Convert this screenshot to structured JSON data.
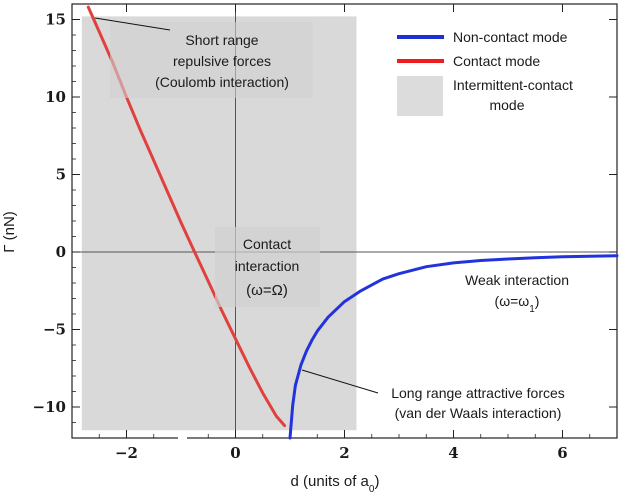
{
  "chart_data": {
    "type": "line",
    "xlabel": "d (units of a",
    "xlabel_sub": "0",
    "xlabel_end": ")",
    "ylabel": "Γ (nN)",
    "xlim": [
      -3.0,
      7.0
    ],
    "ylim": [
      -12.0,
      16.0
    ],
    "xticks": [
      -2,
      0,
      2,
      4,
      6
    ],
    "xtick_labels": [
      "−2",
      "0",
      "2",
      "4",
      "6"
    ],
    "yticks": [
      -10,
      -5,
      0,
      5,
      10,
      15
    ],
    "ytick_labels": [
      "−10",
      "−5",
      "0",
      "5",
      "10",
      "15"
    ],
    "grid": false,
    "legend_position": "top-right",
    "legend": [
      {
        "label": "Non-contact mode",
        "color": "#1f2fd6",
        "kind": "line"
      },
      {
        "label": "Contact mode",
        "color": "#ee1c1c",
        "kind": "line"
      },
      {
        "label": "Intermittent-contact",
        "label2": "mode",
        "color": "#dcdcdc",
        "kind": "patch"
      }
    ],
    "shaded_region": {
      "x": [
        -2.82,
        2.22
      ],
      "y": [
        -11.5,
        15.2
      ],
      "color": "#d6d6d6"
    },
    "series": [
      {
        "key": "contact",
        "color": "#e0413f",
        "x": [
          -2.7,
          -2.5,
          -2.25,
          -2.0,
          -1.75,
          -1.5,
          -1.25,
          -1.0,
          -0.75,
          -0.5,
          -0.25,
          0.0,
          0.25,
          0.5,
          0.75,
          0.9
        ],
        "y": [
          15.8,
          14.2,
          12.2,
          10.0,
          7.9,
          5.9,
          3.9,
          1.9,
          0.0,
          -1.9,
          -3.8,
          -5.6,
          -7.4,
          -9.1,
          -10.6,
          -11.2
        ]
      },
      {
        "key": "non-contact",
        "color": "#2233dd",
        "x": [
          1.0,
          1.05,
          1.1,
          1.2,
          1.3,
          1.4,
          1.5,
          1.7,
          2.0,
          2.3,
          2.7,
          3.0,
          3.5,
          4.0,
          4.5,
          5.0,
          5.5,
          6.0,
          6.5,
          7.0
        ],
        "y": [
          -12.0,
          -9.9,
          -8.6,
          -7.3,
          -6.4,
          -5.7,
          -5.1,
          -4.2,
          -3.2,
          -2.5,
          -1.75,
          -1.4,
          -0.95,
          -0.7,
          -0.55,
          -0.45,
          -0.37,
          -0.31,
          -0.27,
          -0.24
        ]
      }
    ],
    "annotations": [
      {
        "key": "short-range",
        "lines": [
          "Short range",
          "repulsive forces",
          "(Coulomb interaction)"
        ]
      },
      {
        "key": "contact-interaction",
        "lines": [
          "Contact",
          "interaction",
          "(ω=Ω)"
        ]
      },
      {
        "key": "weak-interaction",
        "lines": [
          "Weak interaction",
          "(ω=ω",
          "1",
          ")"
        ]
      },
      {
        "key": "long-range",
        "lines": [
          "Long range attractive forces",
          "(van der Waals interaction)"
        ]
      }
    ]
  }
}
